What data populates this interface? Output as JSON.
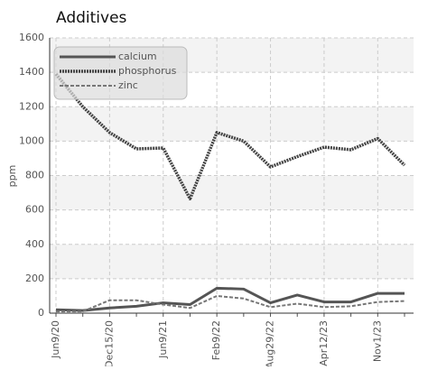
{
  "chart_data": {
    "type": "line",
    "title": "Additives",
    "y_label": "ppm",
    "categories": [
      "Jun9/20",
      null,
      "Dec15/20",
      null,
      "Jun9/21",
      null,
      "Feb9/22",
      null,
      "Aug29/22",
      null,
      "Apr12/23",
      null,
      "Nov1/23",
      null
    ],
    "series": [
      {
        "name": "calcium",
        "color": "#555555",
        "style": "solid",
        "values": [
          20,
          15,
          30,
          40,
          60,
          50,
          145,
          140,
          60,
          105,
          65,
          65,
          115,
          115
        ]
      },
      {
        "name": "phosphorus",
        "color": "#444444",
        "style": "dotted",
        "values": [
          1390,
          1200,
          1050,
          955,
          960,
          665,
          1050,
          1000,
          850,
          910,
          965,
          950,
          1015,
          860
        ]
      },
      {
        "name": "zinc",
        "color": "#777777",
        "style": "dashed",
        "values": [
          10,
          10,
          75,
          75,
          50,
          30,
          100,
          85,
          35,
          55,
          35,
          40,
          65,
          70
        ]
      }
    ],
    "ylim": [
      0,
      1600
    ],
    "yticks": [
      0,
      200,
      400,
      600,
      800,
      1000,
      1200,
      1400,
      1600
    ],
    "grid": true,
    "legend": "top-left"
  }
}
